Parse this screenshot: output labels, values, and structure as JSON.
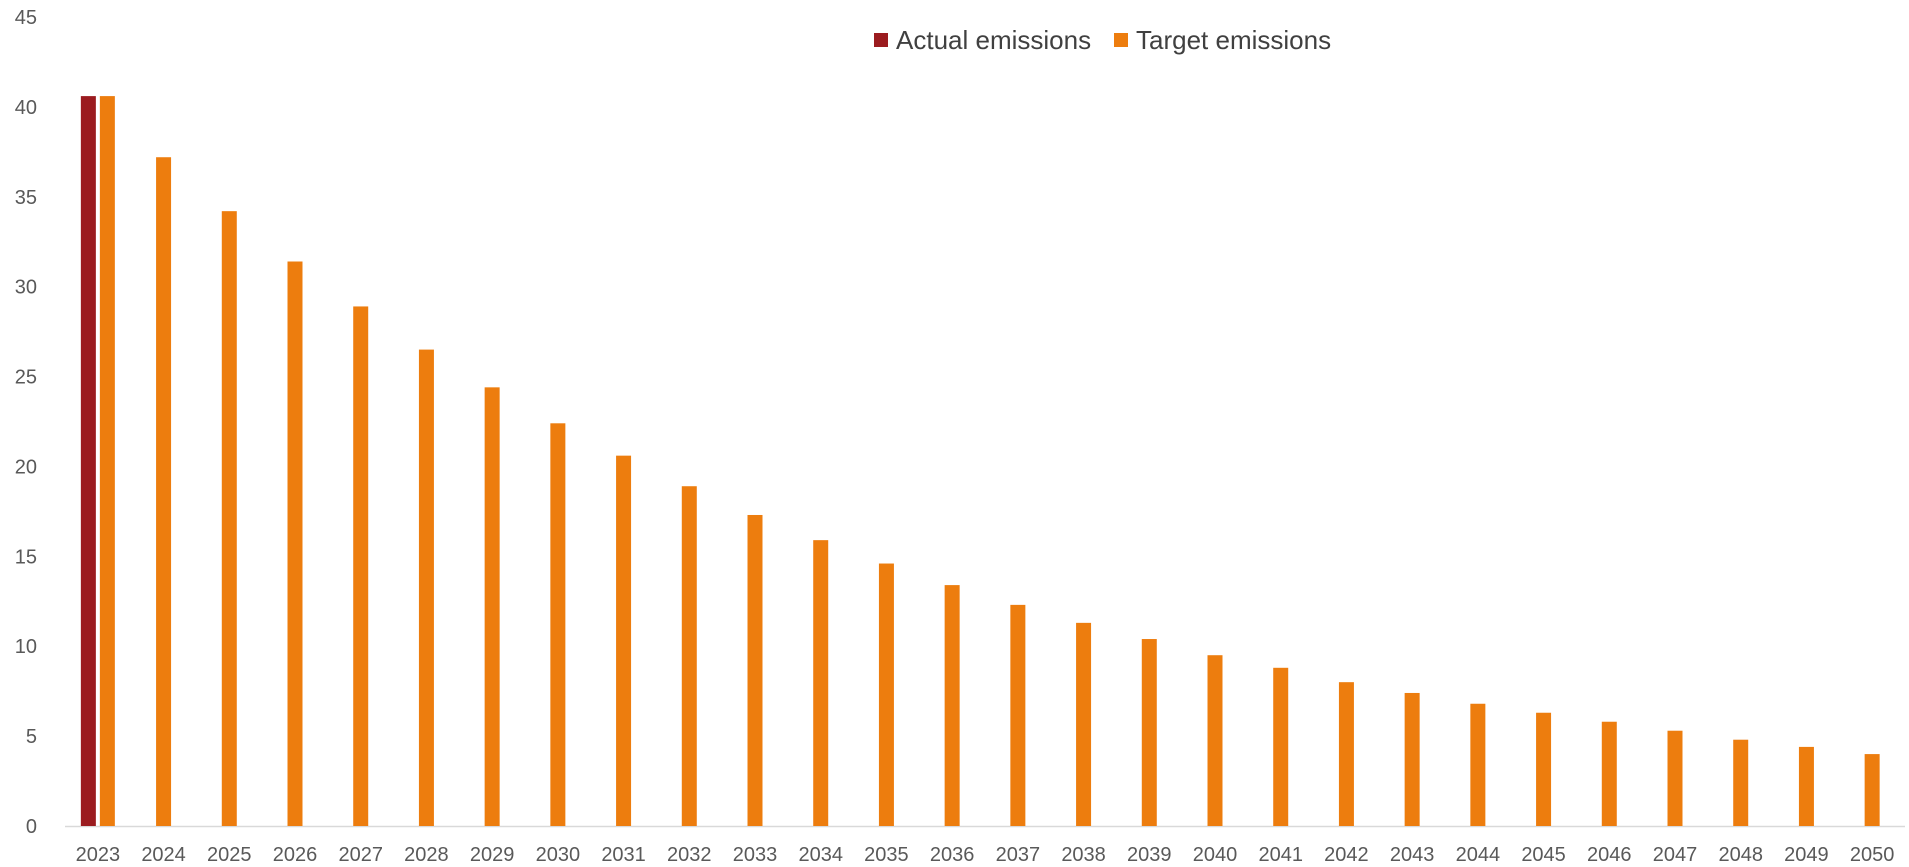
{
  "chart_data": {
    "type": "bar",
    "title": "",
    "xlabel": "",
    "ylabel": "",
    "ylim": [
      0,
      45
    ],
    "yticks": [
      0,
      5,
      10,
      15,
      20,
      25,
      30,
      35,
      40,
      45
    ],
    "grid": false,
    "legend_position": "top-center",
    "categories": [
      "2023",
      "2024",
      "2025",
      "2026",
      "2027",
      "2028",
      "2029",
      "2030",
      "2031",
      "2032",
      "2033",
      "2034",
      "2035",
      "2036",
      "2037",
      "2038",
      "2039",
      "2040",
      "2041",
      "2042",
      "2043",
      "2044",
      "2045",
      "2046",
      "2047",
      "2048",
      "2049",
      "2050"
    ],
    "series": [
      {
        "name": "Actual emissions",
        "color": "#9B1B1F",
        "values": [
          40.6,
          null,
          null,
          null,
          null,
          null,
          null,
          null,
          null,
          null,
          null,
          null,
          null,
          null,
          null,
          null,
          null,
          null,
          null,
          null,
          null,
          null,
          null,
          null,
          null,
          null,
          null,
          null
        ]
      },
      {
        "name": "Target emissions",
        "color": "#ED7D0E",
        "values": [
          40.6,
          37.2,
          34.2,
          31.4,
          28.9,
          26.5,
          24.4,
          22.4,
          20.6,
          18.9,
          17.3,
          15.9,
          14.6,
          13.4,
          12.3,
          11.3,
          10.4,
          9.5,
          8.8,
          8.0,
          7.4,
          6.8,
          6.3,
          5.8,
          5.3,
          4.8,
          4.4,
          4.0
        ]
      }
    ]
  }
}
